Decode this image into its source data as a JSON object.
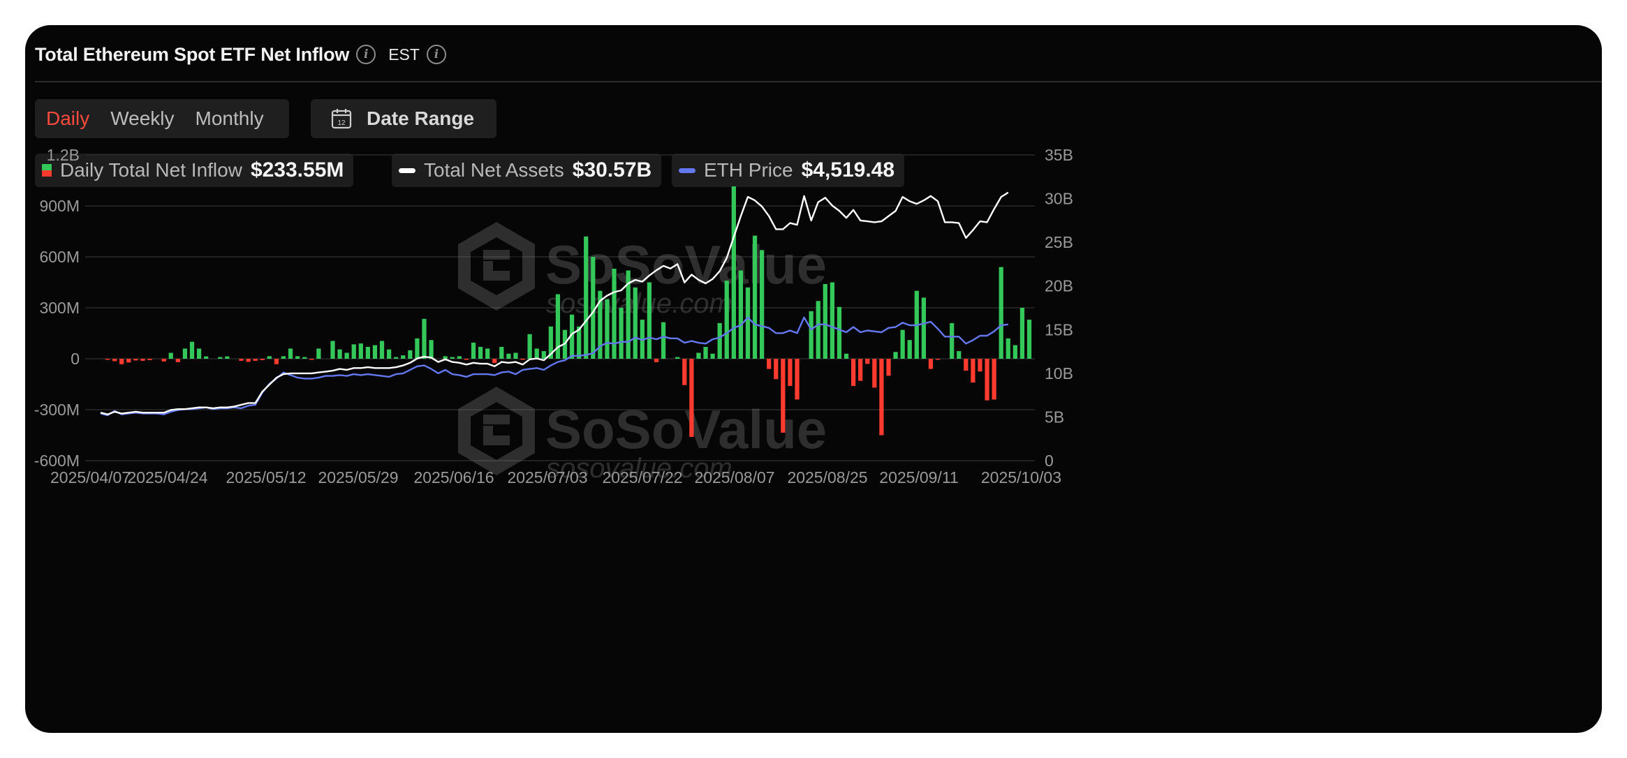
{
  "header": {
    "title": "Total Ethereum Spot ETF Net Inflow",
    "timezone": "EST"
  },
  "controls": {
    "periods": [
      "Daily",
      "Weekly",
      "Monthly"
    ],
    "active_period": "Daily",
    "date_range_label": "Date Range",
    "calendar_day": "12"
  },
  "legend": [
    {
      "label": "Daily Total Net Inflow",
      "value": "$233.55M"
    },
    {
      "label": "Total Net Assets",
      "value": "$30.57B"
    },
    {
      "label": "ETH Price",
      "value": "$4,519.48"
    }
  ],
  "watermark": {
    "brand": "SoSoValue",
    "domain": "sosovalue.com"
  },
  "colors": {
    "positive": "#34c759",
    "negative": "#ff3b30",
    "assets": "#ffffff",
    "price": "#6478f0",
    "active": "#ff4a3d"
  },
  "chart_data": {
    "type": "bar",
    "title": "Total Ethereum Spot ETF Net Inflow",
    "x_range": [
      "2025/04/07",
      "2025/10/03"
    ],
    "x_ticks": [
      "2025/04/07",
      "2025/04/24",
      "2025/05/12",
      "2025/05/29",
      "2025/06/16",
      "2025/07/03",
      "2025/07/22",
      "2025/08/07",
      "2025/08/25",
      "2025/09/11",
      "2025/10/03"
    ],
    "y_left": {
      "ticks": [
        "1.2B",
        "900M",
        "600M",
        "300M",
        "0",
        "-300M",
        "-600M"
      ],
      "min": -600,
      "max": 1200,
      "unit": "M"
    },
    "y_right": {
      "ticks": [
        "35B",
        "30B",
        "25B",
        "20B",
        "15B",
        "10B",
        "5B",
        "0"
      ],
      "min": 0,
      "max": 35,
      "unit": "B"
    },
    "grid": true,
    "series": [
      {
        "name": "Daily Total Net Inflow",
        "axis": "left",
        "values": [
          0,
          -6,
          -14,
          -32,
          -22,
          -10,
          -12,
          -8,
          0,
          -16,
          35,
          -20,
          60,
          100,
          60,
          14,
          0,
          10,
          14,
          0,
          -12,
          -18,
          -12,
          -8,
          15,
          -32,
          15,
          60,
          15,
          10,
          -5,
          60,
          0,
          105,
          55,
          35,
          85,
          90,
          70,
          80,
          105,
          55,
          10,
          20,
          50,
          120,
          235,
          110,
          0,
          15,
          10,
          15,
          -5,
          95,
          70,
          60,
          -25,
          70,
          30,
          35,
          -5,
          145,
          60,
          45,
          190,
          380,
          170,
          260,
          190,
          720,
          600,
          400,
          350,
          530,
          300,
          520,
          420,
          230,
          450,
          -20,
          215,
          0,
          10,
          -155,
          -460,
          35,
          70,
          30,
          210,
          460,
          1015,
          520,
          420,
          725,
          640,
          -60,
          -120,
          -435,
          -160,
          -240,
          0,
          280,
          340,
          440,
          450,
          305,
          30,
          -160,
          -130,
          -30,
          -170,
          -450,
          -100,
          40,
          170,
          110,
          400,
          360,
          -60,
          -5,
          0,
          210,
          45,
          -70,
          -140,
          -75,
          -245,
          -240,
          540,
          120,
          80,
          300,
          230
        ]
      },
      {
        "name": "Total Net Assets",
        "axis": "right",
        "values": [
          5.5,
          5.3,
          5.6,
          5.4,
          5.5,
          5.6,
          5.5,
          5.5,
          5.5,
          5.5,
          5.8,
          5.9,
          5.9,
          6.0,
          6.1,
          6.1,
          6.0,
          6.1,
          6.1,
          6.2,
          6.4,
          6.6,
          6.6,
          7.9,
          8.7,
          9.5,
          9.9,
          10.0,
          10.0,
          10.0,
          10.0,
          10.1,
          10.2,
          10.3,
          10.5,
          10.4,
          10.6,
          10.6,
          10.7,
          10.6,
          10.6,
          10.6,
          10.7,
          10.9,
          11.2,
          11.7,
          11.9,
          11.8,
          11.3,
          11.6,
          11.3,
          11.2,
          11.0,
          11.2,
          11.1,
          11.1,
          10.8,
          11.3,
          11.2,
          11.3,
          11.0,
          11.6,
          11.7,
          11.5,
          12.2,
          13.0,
          13.4,
          14.5,
          15.0,
          16.0,
          17.0,
          18.3,
          18.9,
          19.3,
          19.5,
          20.3,
          20.7,
          20.5,
          21.2,
          21.8,
          22.3,
          22.0,
          22.5,
          20.4,
          21.3,
          20.7,
          20.3,
          20.8,
          21.7,
          23.2,
          25.6,
          28.0,
          30.2,
          29.8,
          29.1,
          28.0,
          26.5,
          26.5,
          27.2,
          27.0,
          30.3,
          27.5,
          29.6,
          30.1,
          29.2,
          28.6,
          27.8,
          28.7,
          27.5,
          27.4,
          27.3,
          27.4,
          28.0,
          28.6,
          30.2,
          29.7,
          29.4,
          29.8,
          30.3,
          29.7,
          27.3,
          27.3,
          27.2,
          25.5,
          26.4,
          27.4,
          27.3,
          28.8,
          30.2,
          30.7
        ]
      },
      {
        "name": "ETH Price",
        "axis": "right",
        "values": [
          5.4,
          5.2,
          5.7,
          5.3,
          5.4,
          5.5,
          5.4,
          5.4,
          5.4,
          5.3,
          5.6,
          5.8,
          5.9,
          5.9,
          6.0,
          6.1,
          5.9,
          6.0,
          6.0,
          6.1,
          6.0,
          6.3,
          6.4,
          7.8,
          8.8,
          9.4,
          10.1,
          9.8,
          9.5,
          9.4,
          9.4,
          9.5,
          9.7,
          9.7,
          9.8,
          9.7,
          9.9,
          9.8,
          9.9,
          9.8,
          9.7,
          9.6,
          9.9,
          10.0,
          10.4,
          10.8,
          10.9,
          10.5,
          10.0,
          10.4,
          9.9,
          9.8,
          9.6,
          9.9,
          9.9,
          9.9,
          9.8,
          10.1,
          10.2,
          9.9,
          10.4,
          10.5,
          10.6,
          10.4,
          10.9,
          11.3,
          11.5,
          12.0,
          12.0,
          12.1,
          12.3,
          13.1,
          13.5,
          13.4,
          13.6,
          13.6,
          14.1,
          13.8,
          14.1,
          13.9,
          14.2,
          14.0,
          14.0,
          13.5,
          13.7,
          13.5,
          13.4,
          13.9,
          14.1,
          14.6,
          15.2,
          15.5,
          16.4,
          15.6,
          15.4,
          15.2,
          14.6,
          14.6,
          14.9,
          14.6,
          16.4,
          15.0,
          15.6,
          15.6,
          15.3,
          15.0,
          14.7,
          15.3,
          14.7,
          14.9,
          14.8,
          14.7,
          15.2,
          15.3,
          15.8,
          15.5,
          15.5,
          15.7,
          15.9,
          15.1,
          14.2,
          14.2,
          14.2,
          13.4,
          13.8,
          14.3,
          14.3,
          14.8,
          15.5,
          15.6
        ]
      }
    ]
  }
}
